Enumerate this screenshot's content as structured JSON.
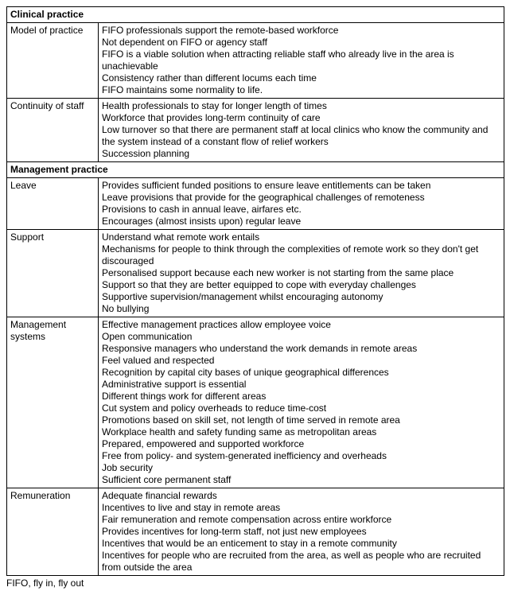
{
  "sections": [
    {
      "title": "Clinical practice",
      "rows": [
        {
          "label": "Model of practice",
          "lines": [
            "FIFO professionals support the remote-based workforce",
            "Not dependent on FIFO or agency staff",
            "FIFO is a viable solution when attracting reliable staff who already live in the area is unachievable",
            "Consistency rather than different locums each time",
            "FIFO maintains some normality to life."
          ]
        },
        {
          "label": "Continuity of staff",
          "lines": [
            "Health professionals to stay for longer length of times",
            "Workforce that provides long-term continuity of care",
            "Low turnover so that there are permanent staff at local clinics who know the community and the system instead of a constant flow of relief workers",
            "Succession planning"
          ]
        }
      ]
    },
    {
      "title": "Management practice",
      "rows": [
        {
          "label": "Leave",
          "lines": [
            "Provides sufficient funded positions to ensure leave entitlements can be taken",
            "Leave provisions that provide for the geographical challenges of remoteness",
            "Provisions to cash in annual leave, airfares etc.",
            "Encourages (almost insists upon) regular leave"
          ]
        },
        {
          "label": "Support",
          "lines": [
            "Understand what remote work entails",
            "Mechanisms for people to think through the complexities of remote work so they don't get discouraged",
            "Personalised support because each new worker is not starting from the same place",
            "Support so that they are better equipped to cope with everyday challenges",
            "Supportive supervision/management whilst encouraging autonomy",
            "No bullying"
          ]
        },
        {
          "label": "Management systems",
          "lines": [
            "Effective management practices allow employee voice",
            "Open communication",
            "Responsive managers who understand the work demands in remote areas",
            "Feel valued and respected",
            "Recognition by capital city bases of unique geographical differences",
            "Administrative support is essential",
            "Different things work for different areas",
            "Cut system and policy overheads to reduce time-cost",
            "Promotions based on skill set, not length of time served in remote area",
            "Workplace health and safety funding same as metropolitan areas",
            "Prepared, empowered and supported workforce",
            "Free from policy- and system-generated inefficiency and overheads",
            "Job security",
            "Sufficient core permanent staff"
          ]
        },
        {
          "label": "Remuneration",
          "lines": [
            "Adequate financial rewards",
            "Incentives to live and stay in remote areas",
            "Fair remuneration and remote compensation across entire workforce",
            "Provides incentives for long-term staff, not just new employees",
            "Incentives that would be an enticement to stay in a remote community",
            "Incentives for people who are recruited from the area, as well as people who are recruited from outside the area"
          ]
        }
      ]
    }
  ],
  "footnote": "FIFO, fly in, fly out"
}
